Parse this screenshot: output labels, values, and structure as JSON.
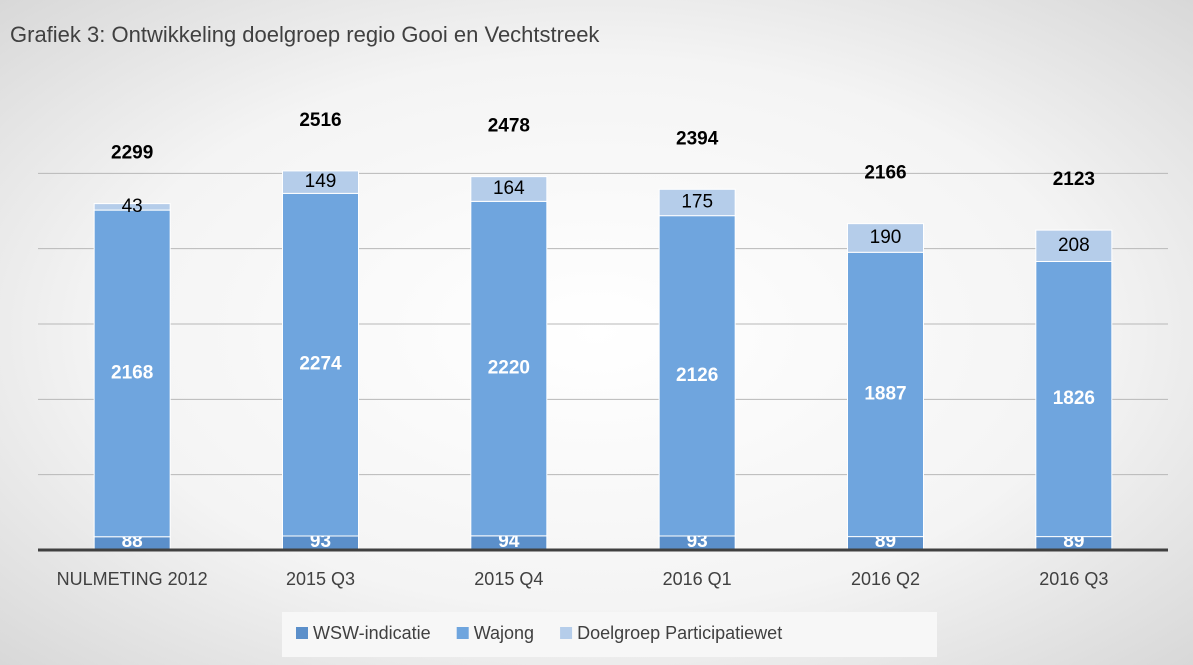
{
  "chart_data": {
    "type": "stacked_bar",
    "title": "Grafiek 3: Ontwikkeling doelgroep regio Gooi en Vechtstreek",
    "categories": [
      "NULMETING 2012",
      "2015 Q3",
      "2015 Q4",
      "2016 Q1",
      "2016 Q2",
      "2016 Q3"
    ],
    "series": [
      {
        "name": "WSW-indicatie",
        "color": "#5b8fca",
        "values": [
          88,
          93,
          94,
          93,
          89,
          89
        ]
      },
      {
        "name": "Wajong",
        "color": "#6fa5de",
        "values": [
          2168,
          2274,
          2220,
          2126,
          1887,
          1826
        ]
      },
      {
        "name": "Doelgroep Participatiewet",
        "color": "#b5cdea",
        "values": [
          43,
          149,
          164,
          175,
          190,
          208
        ]
      }
    ],
    "totals": [
      2299,
      2516,
      2478,
      2394,
      2166,
      2123
    ],
    "ylim": [
      0,
      3000
    ],
    "yticks": [
      0,
      500,
      1000,
      1500,
      2000,
      2500
    ],
    "grid": true
  }
}
